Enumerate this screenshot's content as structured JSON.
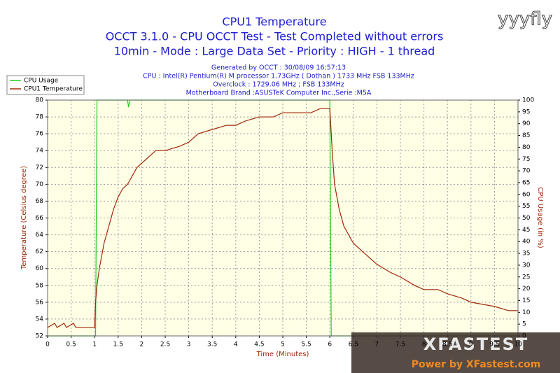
{
  "chart_data": {
    "type": "line",
    "title": "CPU1 Temperature",
    "subtitle": [
      "OCCT 3.1.0 - CPU OCCT Test - Test Completed without errors",
      "10min - Mode : Large Data Set - Priority : HIGH - 1 thread"
    ],
    "info": [
      "Generated by OCCT : 30/08/09 16:57:13",
      "CPU : Intel(R) Pentium(R) M processor 1.73GHz ( Dothan ) 1733 MHz FSB 133MHz",
      "Overclock : 1729.06 MHz ; FSB 133MHz",
      "Motherboard Brand :ASUSTeK Computer Inc.,Serie :M5A"
    ],
    "x_label": "Time (Minutes)",
    "y_label": "Temperature (Celsius degree)",
    "y2_label": "CPU Usage (in %)",
    "watermarks": [
      "yyyfly",
      "XFASTEST",
      "Power by XFastest.com"
    ],
    "xlim": [
      0,
      10
    ],
    "xticks": [
      0,
      0.5,
      1,
      1.5,
      2,
      2.5,
      3,
      3.5,
      4,
      4.5,
      5,
      5.5,
      6,
      6.5,
      7,
      7.5,
      8,
      8.5,
      9,
      9.5,
      10
    ],
    "ylim": [
      52,
      80
    ],
    "yticks": [
      52,
      54,
      56,
      58,
      60,
      62,
      64,
      66,
      68,
      70,
      72,
      74,
      76,
      78,
      80
    ],
    "y2lim": [
      0,
      100
    ],
    "y2ticks": [
      0,
      5,
      10,
      15,
      20,
      25,
      30,
      35,
      40,
      45,
      50,
      55,
      60,
      65,
      70,
      75,
      80,
      85,
      90,
      95,
      100
    ],
    "grid": true,
    "legend": "top-left",
    "series": [
      {
        "name": "CPU Usage",
        "color": "#22cc22",
        "axis": "y2",
        "x": [
          0,
          1.02,
          1.05,
          1.7,
          1.72,
          1.75,
          6.0,
          6.03,
          10
        ],
        "values": [
          0,
          0,
          100,
          100,
          97,
          100,
          100,
          0,
          0
        ]
      },
      {
        "name": "CPU1 Temperature",
        "color": "#a0280a",
        "x": [
          0,
          0.15,
          0.2,
          0.35,
          0.4,
          0.55,
          0.6,
          1.0,
          1.02,
          1.05,
          1.1,
          1.2,
          1.3,
          1.4,
          1.5,
          1.6,
          1.7,
          1.8,
          1.9,
          2.0,
          2.1,
          2.2,
          2.3,
          2.5,
          2.8,
          3.0,
          3.2,
          3.5,
          3.8,
          4.0,
          4.2,
          4.5,
          4.8,
          5.0,
          5.3,
          5.6,
          5.8,
          6.0,
          6.05,
          6.1,
          6.2,
          6.3,
          6.5,
          6.7,
          6.9,
          7.0,
          7.3,
          7.5,
          7.8,
          8.0,
          8.3,
          8.5,
          8.8,
          9.0,
          9.5,
          9.8,
          10
        ],
        "values": [
          53,
          53.5,
          53,
          53.5,
          53,
          53.5,
          53,
          53,
          56,
          58,
          60,
          63,
          65,
          67,
          68.5,
          69.5,
          70,
          71,
          72,
          72.5,
          73,
          73.5,
          74,
          74,
          74.5,
          75,
          76,
          76.5,
          77,
          77,
          77.5,
          78,
          78,
          78.5,
          78.5,
          78.5,
          79,
          79,
          74,
          70,
          67,
          65,
          63,
          62,
          61,
          60.5,
          59.5,
          59,
          58,
          57.5,
          57.5,
          57,
          56.5,
          56,
          55.5,
          55,
          55
        ]
      }
    ]
  }
}
